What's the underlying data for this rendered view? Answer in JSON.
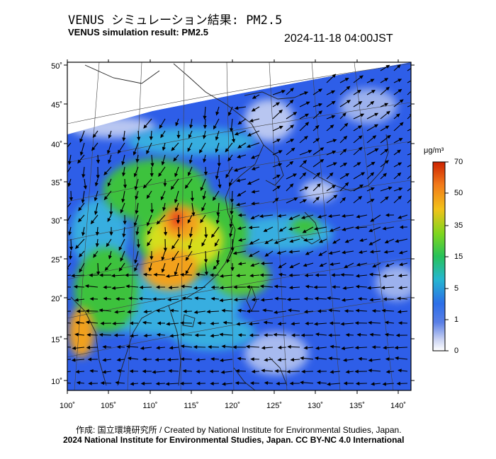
{
  "header": {
    "title_ja": "VENUS シミュレーション結果: PM2.5",
    "title_en": "VENUS simulation result: PM2.5",
    "timestamp": "2024-11-18 04:00JST"
  },
  "map": {
    "lon_range": [
      100,
      141.5
    ],
    "lat_range": [
      9,
      50.5
    ],
    "x_ticks": [
      "100˚",
      "105˚",
      "110˚",
      "115˚",
      "120˚",
      "125˚",
      "130˚",
      "135˚",
      "140˚"
    ],
    "y_ticks": [
      "50˚",
      "45˚",
      "40˚",
      "35˚",
      "30˚",
      "25˚",
      "20˚",
      "15˚",
      "10˚"
    ],
    "field_colors": {
      "blue": "#2e5ee8",
      "cyan": "#39b3e0",
      "green": "#3ec23e",
      "yellow": "#d6df1f",
      "orange": "#f2a11c",
      "red": "#e8371a",
      "pale": "#c8d2f2"
    }
  },
  "colorbar": {
    "unit": "μg/m³",
    "labels": [
      "70",
      "50",
      "35",
      "15",
      "5",
      "1",
      "0"
    ],
    "colors": [
      "#cc2200",
      "#f27a1a",
      "#f2c21a",
      "#7ed61e",
      "#27c25a",
      "#25b7cf",
      "#2c6ee8",
      "#5a7fe6",
      "#c9d2f2",
      "#ffffff"
    ]
  },
  "footer": {
    "created_by": "作成: 国立環境研究所 / Created by National Institute for Environmental Studies, Japan.",
    "license": "2024 National Institute for Environmental Studies, Japan. CC BY-NC 4.0 International"
  }
}
